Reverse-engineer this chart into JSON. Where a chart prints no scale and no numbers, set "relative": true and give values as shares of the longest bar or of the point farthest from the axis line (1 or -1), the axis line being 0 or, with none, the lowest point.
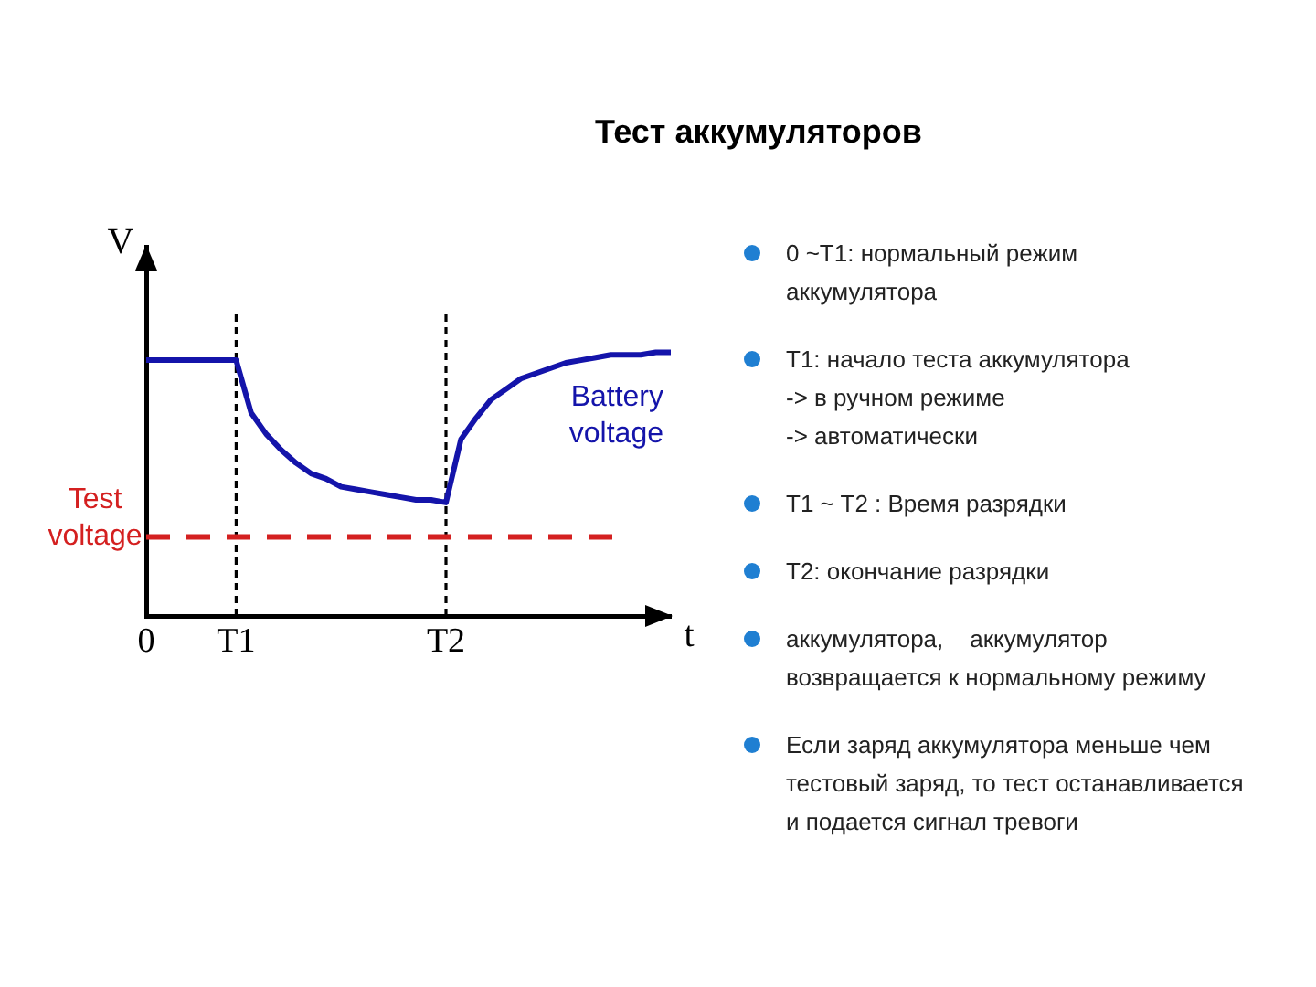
{
  "chart_data": {
    "type": "line",
    "title": "Тест аккумуляторов",
    "xlabel": "t",
    "ylabel": "V",
    "relative": true,
    "categories": [
      "0",
      null,
      null,
      null,
      null,
      null,
      "T1",
      null,
      null,
      null,
      null,
      null,
      null,
      null,
      null,
      null,
      null,
      null,
      null,
      null,
      "T2",
      null,
      null,
      null,
      null,
      null,
      null,
      null,
      null,
      null,
      null,
      null,
      null,
      null,
      null,
      null
    ],
    "series": [
      {
        "name": "Battery voltage",
        "color": "#1414aa",
        "values": [
          0.97,
          0.97,
          0.97,
          0.97,
          0.97,
          0.97,
          0.97,
          0.77,
          0.69,
          0.63,
          0.58,
          0.54,
          0.52,
          0.49,
          0.48,
          0.47,
          0.46,
          0.45,
          0.44,
          0.44,
          0.43,
          0.67,
          0.75,
          0.82,
          0.86,
          0.9,
          0.92,
          0.94,
          0.96,
          0.97,
          0.98,
          0.99,
          0.99,
          0.99,
          1.0,
          1
        ]
      }
    ],
    "ref_lines": [
      {
        "axis": "x",
        "value": "T1",
        "color": "#000000",
        "line_style": "dashed"
      },
      {
        "axis": "x",
        "value": "T2",
        "color": "#000000",
        "line_style": "dashed"
      },
      {
        "axis": "y",
        "value": 0.3,
        "label": "Test voltage",
        "color": "#d42020",
        "line_style": "dashed"
      }
    ],
    "legend": false,
    "grid": false,
    "annotations": [
      "0 ~T1: нормальный режим\nаккумулятора",
      "T1: начало теста аккумулятора\n-> в ручном режиме\n-> автоматически",
      "T1 ~ T2 : Время разрядки",
      "T2: окончание разрядки",
      "аккумулятора,    аккумулятор\nвозвращается к нормальному режиму",
      "Если заряд аккумулятора меньше чем\nтестовый заряд, то тест останавливается\nи подается сигнал тревоги"
    ]
  }
}
